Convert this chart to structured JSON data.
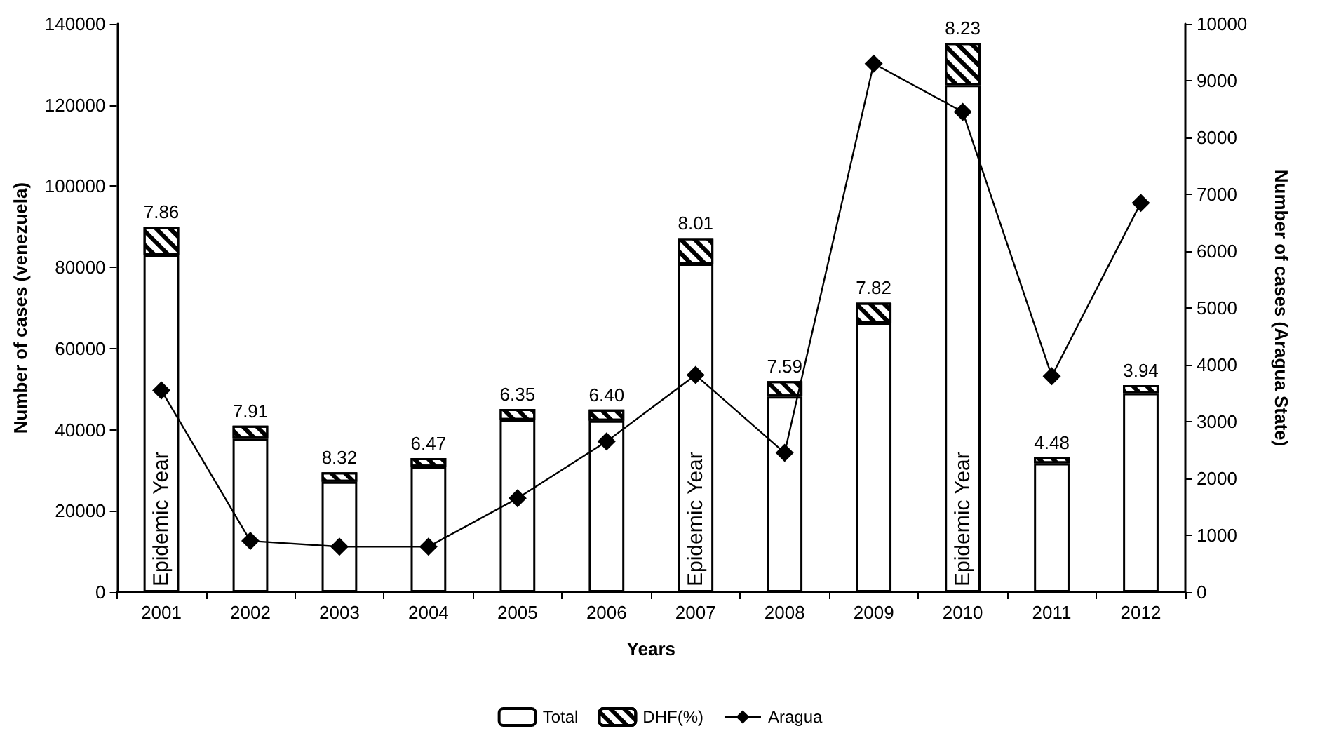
{
  "chart_data": {
    "type": "bar",
    "stacked": true,
    "xlabel": "Years",
    "ylabel": "Number of cases (venezuela)",
    "y2label": "Number of cases (Aragua State)",
    "categories": [
      "2001",
      "2002",
      "2003",
      "2004",
      "2005",
      "2006",
      "2007",
      "2008",
      "2009",
      "2010",
      "2011",
      "2012"
    ],
    "series": [
      {
        "name": "Total",
        "color": "#ffffff",
        "values": [
          83100,
          37800,
          27200,
          30900,
          42400,
          42200,
          80900,
          48200,
          66200,
          124900,
          31700,
          49000
        ]
      },
      {
        "name": "DHF(%)",
        "color": "#000000",
        "values": [
          6900,
          3200,
          2300,
          2100,
          2700,
          2800,
          6300,
          3800,
          5100,
          10400,
          1500,
          2000
        ]
      },
      {
        "name": "Aragua",
        "type": "line",
        "axis": "y2",
        "color": "#000000",
        "marker": "diamond",
        "values": [
          3550,
          900,
          800,
          800,
          1650,
          2650,
          3820,
          2450,
          9300,
          8450,
          3800,
          6850
        ]
      }
    ],
    "annotations": [
      {
        "text": "Epidemic Year",
        "x": "2001",
        "y": 0
      },
      {
        "text": "Epidemic Year",
        "x": "2007",
        "y": 0
      },
      {
        "text": "Epidemic Year",
        "x": "2010",
        "y": 0
      },
      {
        "text": "7.86",
        "x": "2001",
        "y": 90000
      },
      {
        "text": "7.91",
        "x": "2002",
        "y": 41000
      },
      {
        "text": "8.32",
        "x": "2003",
        "y": 29500
      },
      {
        "text": "6.47",
        "x": "2004",
        "y": 33000
      },
      {
        "text": "6.35",
        "x": "2005",
        "y": 45100
      },
      {
        "text": "6.40",
        "x": "2006",
        "y": 45000
      },
      {
        "text": "8.01",
        "x": "2007",
        "y": 87200
      },
      {
        "text": "7.59",
        "x": "2008",
        "y": 52000
      },
      {
        "text": "7.82",
        "x": "2009",
        "y": 71300
      },
      {
        "text": "8.23",
        "x": "2010",
        "y": 135300
      },
      {
        "text": "4.48",
        "x": "2011",
        "y": 33200
      },
      {
        "text": "3.94",
        "x": "2012",
        "y": 51000
      }
    ],
    "ylim": [
      0,
      140000
    ],
    "yticks": [
      0,
      20000,
      40000,
      60000,
      80000,
      100000,
      120000,
      140000
    ],
    "y2lim": [
      0,
      10000
    ],
    "y2ticks": [
      0,
      1000,
      2000,
      3000,
      4000,
      5000,
      6000,
      7000,
      8000,
      9000,
      10000
    ],
    "grid": false,
    "legend": "bottom"
  }
}
